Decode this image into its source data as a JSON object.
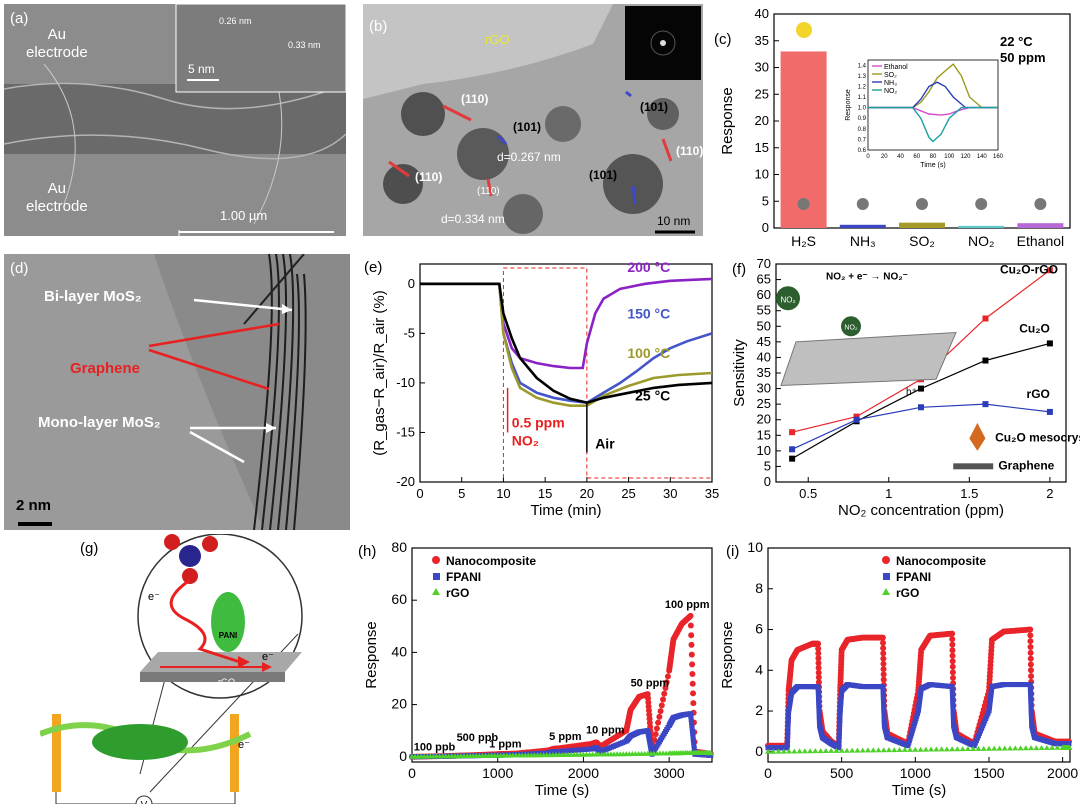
{
  "panels": {
    "a": {
      "label": "(a)",
      "top_electrode": "Au\nelectrode",
      "bottom_electrode": "Au\nelectrode",
      "inset_d1": "0.26 nm",
      "inset_d2": "0.33 nm",
      "inset_scale": "5 nm",
      "scale": "1.00 µm"
    },
    "b": {
      "label": "(b)",
      "material": "rGO",
      "planes": [
        "(110)",
        "(101)",
        "(101)",
        "(110)",
        "(110)",
        "(101)",
        "(110)"
      ],
      "d1": "d=0.267 nm",
      "d2": "d=0.334 nm",
      "scale": "10 nm"
    },
    "d": {
      "label": "(d)",
      "bilayer": "Bi-layer MoS₂",
      "graphene": "Graphene",
      "monolayer": "Mono-layer MoS₂",
      "scale": "2 nm"
    },
    "g": {
      "label": "(g)",
      "electron": "e⁻",
      "polymer": "PANI",
      "substrate": "rGO",
      "meter": "V"
    }
  },
  "colors": {
    "red": "#e8252a",
    "blue": "#3845c8",
    "green": "#4fd12a",
    "h2s": "#f26b6b",
    "purple": "#8b22c6",
    "olive": "#9d9a2c"
  },
  "chart_data": [
    {
      "id": "c",
      "label": "(c)",
      "type": "bar",
      "categories": [
        "H₂S",
        "NH₃",
        "SO₂",
        "NO₂",
        "Ethanol"
      ],
      "values": [
        33,
        0.6,
        1.0,
        0.4,
        0.9
      ],
      "bar_colors": [
        "#f26b6b",
        "#3b47c4",
        "#a69a28",
        "#5cc8c8",
        "#b768d6"
      ],
      "ylabel": "Response",
      "ylim": [
        0,
        40
      ],
      "yticks": [
        0,
        5,
        10,
        15,
        20,
        25,
        30,
        35,
        40
      ],
      "annotation": "22 °C\n50 ppm",
      "inset": {
        "type": "line",
        "xlabel": "Time (s)",
        "ylabel": "Response",
        "xlim": [
          0,
          160
        ],
        "ylim": [
          0.6,
          1.45
        ],
        "xticks": [
          0,
          20,
          40,
          60,
          80,
          100,
          120,
          140,
          160
        ],
        "yticks": [
          0.6,
          0.7,
          0.8,
          0.9,
          1.0,
          1.1,
          1.2,
          1.3,
          1.4
        ],
        "series": [
          {
            "name": "Ethanol",
            "color": "#d24bd2",
            "x": [
              0,
              55,
              65,
              75,
              90,
              100,
              110,
              125,
              160
            ],
            "y": [
              1.0,
              1.0,
              0.97,
              0.94,
              0.93,
              0.94,
              0.97,
              1.0,
              1.0
            ]
          },
          {
            "name": "SO₂",
            "color": "#9a9a1c",
            "x": [
              0,
              55,
              65,
              75,
              85,
              100,
              105,
              115,
              125,
              140,
              160
            ],
            "y": [
              1.0,
              1.0,
              1.05,
              1.15,
              1.28,
              1.38,
              1.41,
              1.3,
              1.1,
              1.0,
              1.0
            ]
          },
          {
            "name": "NH₃",
            "color": "#2a3db8",
            "x": [
              0,
              55,
              65,
              75,
              85,
              95,
              105,
              120,
              160
            ],
            "y": [
              1.0,
              1.0,
              1.08,
              1.2,
              1.24,
              1.2,
              1.1,
              1.0,
              1.0
            ]
          },
          {
            "name": "NO₂",
            "color": "#1aa0a0",
            "x": [
              0,
              55,
              65,
              75,
              80,
              90,
              100,
              115,
              160
            ],
            "y": [
              1.0,
              1.0,
              0.9,
              0.72,
              0.68,
              0.75,
              0.9,
              1.0,
              1.0
            ]
          }
        ]
      }
    },
    {
      "id": "e",
      "label": "(e)",
      "type": "line",
      "xlabel": "Time (min)",
      "ylabel": "(R_gas−R_air)/R_air (%)",
      "xlim": [
        0,
        35
      ],
      "ylim": [
        -20,
        2
      ],
      "xticks": [
        0,
        5,
        10,
        15,
        20,
        25,
        30,
        35
      ],
      "yticks": [
        0,
        -5,
        -10,
        -15,
        -20
      ],
      "pulse_label": "0.5 ppm\nNO₂",
      "air_label": "Air",
      "series": [
        {
          "name": "200 °C",
          "color": "#8b22c6",
          "x": [
            0,
            9.5,
            10,
            11,
            12,
            14,
            16,
            18,
            19.5,
            20,
            21,
            22,
            24,
            27,
            30,
            35
          ],
          "y": [
            0,
            0,
            -4,
            -6.5,
            -7.5,
            -8,
            -8.3,
            -8.5,
            -8.5,
            -6,
            -3,
            -1.5,
            -0.5,
            0,
            0.3,
            0.5
          ]
        },
        {
          "name": "150 °C",
          "color": "#4556c8",
          "x": [
            0,
            9.5,
            10,
            11,
            12,
            14,
            16,
            18,
            20,
            22,
            24,
            26,
            28,
            30,
            32,
            35
          ],
          "y": [
            0,
            0,
            -5,
            -8,
            -10,
            -11,
            -11.5,
            -11.8,
            -12,
            -11,
            -10,
            -8.8,
            -7.5,
            -6.5,
            -5.8,
            -5
          ]
        },
        {
          "name": "100 °C",
          "color": "#9d9a2c",
          "x": [
            0,
            9.5,
            10,
            11,
            12,
            14,
            16,
            18,
            20,
            22,
            25,
            28,
            31,
            35
          ],
          "y": [
            0,
            0,
            -5,
            -8.5,
            -10.5,
            -11.5,
            -12,
            -12.3,
            -12.3,
            -11.3,
            -10.3,
            -9.5,
            -9.2,
            -9
          ]
        },
        {
          "name": "25 °C",
          "color": "#000000",
          "x": [
            0,
            9.5,
            10,
            11,
            12,
            14,
            16,
            18,
            20,
            22,
            25,
            28,
            31,
            35
          ],
          "y": [
            0,
            0,
            -3,
            -5.5,
            -7.5,
            -9.5,
            -10.8,
            -11.6,
            -12,
            -11.5,
            -11,
            -10.5,
            -10.2,
            -10
          ]
        }
      ]
    },
    {
      "id": "f",
      "label": "(f)",
      "type": "line",
      "xlabel": "NO₂ concentration (ppm)",
      "ylabel": "Sensitivity",
      "xlim": [
        0.3,
        2.1
      ],
      "ylim": [
        0,
        70
      ],
      "xticks": [
        0.5,
        1.0,
        1.5,
        2.0
      ],
      "yticks": [
        0,
        5,
        10,
        15,
        20,
        25,
        30,
        35,
        40,
        45,
        50,
        55,
        60,
        65,
        70
      ],
      "reaction": "NO₂ + e⁻ → NO₂⁻",
      "hole": "h⁺",
      "legend_crystals": "Cu₂O mesocrystals",
      "legend_graphene": "Graphene",
      "molecule": "NO₂",
      "series": [
        {
          "name": "Cu₂O-rGO",
          "color": "#e8252a",
          "x": [
            0.4,
            0.8,
            1.2,
            1.6,
            2.0
          ],
          "y": [
            16,
            21,
            33,
            52.5,
            68
          ]
        },
        {
          "name": "Cu₂O",
          "color": "#000000",
          "x": [
            0.4,
            0.8,
            1.2,
            1.6,
            2.0
          ],
          "y": [
            7.5,
            19.5,
            30,
            39,
            44.5
          ]
        },
        {
          "name": "rGO",
          "color": "#2a3db8",
          "x": [
            0.4,
            0.8,
            1.2,
            1.6,
            2.0
          ],
          "y": [
            10.5,
            20,
            24,
            25,
            22.5
          ]
        }
      ]
    },
    {
      "id": "h",
      "label": "(h)",
      "type": "scatter",
      "xlabel": "Time (s)",
      "ylabel": "Response",
      "xlim": [
        0,
        3500
      ],
      "ylim": [
        -2,
        80
      ],
      "xticks": [
        0,
        1000,
        2000,
        3000
      ],
      "yticks": [
        0,
        20,
        40,
        60,
        80
      ],
      "concentrations": [
        "100 ppb",
        "500 ppb",
        "1 ppm",
        "5 ppm",
        "10 ppm",
        "50 ppm",
        "100 ppm"
      ],
      "series": [
        {
          "name": "Nanocomposite",
          "color": "#e8252a",
          "x": [
            0,
            400,
            700,
            1000,
            1200,
            1600,
            1650,
            1700,
            2100,
            2150,
            2200,
            2500,
            2550,
            2650,
            2750,
            2800,
            3000,
            3050,
            3150,
            3250,
            3300,
            3500
          ],
          "y": [
            0,
            0.3,
            0.6,
            1,
            1.2,
            2.5,
            3,
            3.2,
            5,
            5.5,
            4,
            10,
            18,
            23,
            24,
            2,
            33,
            45,
            51,
            54,
            2,
            1
          ]
        },
        {
          "name": "FPANI",
          "color": "#3b47c4",
          "x": [
            0,
            400,
            700,
            1000,
            1200,
            1600,
            1650,
            1700,
            2100,
            2150,
            2200,
            2500,
            2550,
            2650,
            2750,
            2800,
            3000,
            3050,
            3150,
            3250,
            3300,
            3500
          ],
          "y": [
            0,
            0.2,
            0.4,
            0.6,
            0.8,
            1.5,
            2,
            2,
            3,
            3.5,
            2,
            6,
            8,
            9.5,
            10,
            1,
            12,
            15,
            16,
            16.5,
            1,
            0.5
          ]
        },
        {
          "name": "rGO",
          "color": "#4fd12a",
          "x": [
            0,
            500,
            1000,
            1500,
            2000,
            2500,
            3000,
            3300,
            3500
          ],
          "y": [
            0,
            0.2,
            0.4,
            0.6,
            0.8,
            1,
            1.3,
            1.5,
            1.4
          ]
        }
      ]
    },
    {
      "id": "i",
      "label": "(i)",
      "type": "scatter",
      "xlabel": "Time (s)",
      "ylabel": "Response",
      "xlim": [
        0,
        2050
      ],
      "ylim": [
        -0.5,
        10
      ],
      "xticks": [
        0,
        500,
        1000,
        1500,
        2000
      ],
      "yticks": [
        0,
        2,
        4,
        6,
        8,
        10
      ],
      "series": [
        {
          "name": "Nanocomposite",
          "color": "#e8252a",
          "x": [
            0,
            130,
            140,
            160,
            200,
            300,
            340,
            350,
            370,
            430,
            480,
            490,
            500,
            540,
            640,
            780,
            790,
            810,
            950,
            1020,
            1040,
            1100,
            1250,
            1260,
            1280,
            1400,
            1500,
            1520,
            1600,
            1780,
            1790,
            1810,
            1950,
            2050
          ],
          "y": [
            0.3,
            0.3,
            3,
            4.5,
            5,
            5.3,
            5.3,
            2,
            1,
            0.5,
            0.3,
            3,
            5,
            5.5,
            5.6,
            5.6,
            2,
            0.9,
            0.4,
            3,
            5,
            5.7,
            5.8,
            2,
            0.9,
            0.4,
            3,
            5.5,
            5.9,
            6,
            2,
            0.9,
            0.5,
            0.5
          ]
        },
        {
          "name": "FPANI",
          "color": "#3b47c4",
          "x": [
            0,
            130,
            140,
            160,
            200,
            300,
            340,
            350,
            370,
            430,
            480,
            490,
            500,
            540,
            640,
            780,
            790,
            810,
            950,
            1020,
            1040,
            1100,
            1250,
            1260,
            1280,
            1400,
            1500,
            1520,
            1600,
            1780,
            1790,
            1810,
            1950,
            2050
          ],
          "y": [
            0.2,
            0.2,
            2,
            2.9,
            3.2,
            3.2,
            3.2,
            1.3,
            0.7,
            0.4,
            0.2,
            2,
            3,
            3.3,
            3.2,
            3.2,
            1.3,
            0.7,
            0.3,
            2,
            3.1,
            3.3,
            3.2,
            1.3,
            0.7,
            0.3,
            2,
            3.2,
            3.3,
            3.3,
            1.3,
            0.7,
            0.4,
            0.4
          ]
        },
        {
          "name": "rGO",
          "color": "#4fd12a",
          "x": [
            0,
            500,
            1000,
            1500,
            2000,
            2050
          ],
          "y": [
            0,
            0.05,
            0.1,
            0.15,
            0.2,
            0.2
          ]
        }
      ]
    }
  ]
}
